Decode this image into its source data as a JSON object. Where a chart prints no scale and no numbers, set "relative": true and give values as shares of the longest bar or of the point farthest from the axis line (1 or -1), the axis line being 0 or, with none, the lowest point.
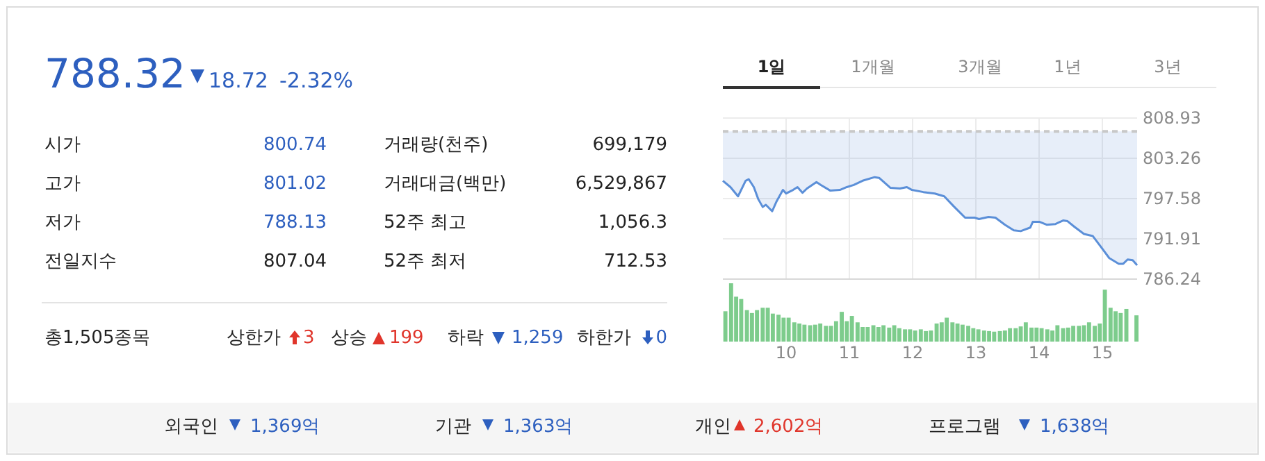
{
  "chart_data": [
    {
      "type": "other",
      "annotations": [
        "788.32",
        "18.72",
        "-2.32%",
        "시가",
        "800.74",
        "거래량(천주)",
        "699,179",
        "고가",
        "801.02",
        "거래대금(백만)",
        "6,529,867",
        "저가",
        "788.13",
        "52주 최고",
        "1,056.3",
        "전일지수",
        "807.04",
        "52주 최저",
        "712.53",
        "총1,505종목",
        "상한가",
        "3",
        "상승",
        "199",
        "하락",
        "1,259",
        "하한가",
        "0",
        "1일",
        "1개월",
        "3개월",
        "1년",
        "3년",
        "외국인",
        "1,369억",
        "기관",
        "1,363억",
        "개인",
        "2,602억",
        "프로그램",
        "1,638억"
      ]
    },
    {
      "type": "area",
      "x": [
        9.0,
        9.12,
        9.24,
        9.36,
        9.41,
        9.49,
        9.56,
        9.63,
        9.68,
        9.78,
        9.85,
        9.95,
        10.0,
        10.11,
        10.18,
        10.26,
        10.33,
        10.48,
        10.55,
        10.7,
        10.85,
        10.96,
        11.07,
        11.21,
        11.4,
        11.47,
        11.65,
        11.8,
        11.91,
        11.99,
        12.17,
        12.35,
        12.5,
        12.65,
        12.83,
        12.98,
        13.05,
        13.2,
        13.31,
        13.46,
        13.6,
        13.71,
        13.86,
        13.9,
        14.01,
        14.12,
        14.26,
        14.38,
        14.45,
        14.56,
        14.71,
        14.85,
        14.96,
        15.11,
        15.26,
        15.33,
        15.4,
        15.48,
        15.55
      ],
      "series": [
        {
          "type": "line",
          "color": "#5b8fd8",
          "values": [
            800.1,
            799.2,
            797.9,
            800.1,
            800.3,
            799.2,
            797.5,
            796.4,
            796.7,
            795.8,
            797.2,
            798.8,
            798.3,
            798.8,
            799.2,
            798.4,
            799.0,
            799.9,
            799.5,
            798.7,
            798.8,
            799.2,
            799.5,
            800.1,
            800.6,
            800.5,
            799.1,
            799.0,
            799.2,
            798.8,
            798.5,
            798.3,
            797.9,
            796.5,
            794.9,
            794.9,
            794.7,
            795.0,
            794.9,
            793.9,
            793.1,
            793.0,
            793.5,
            794.3,
            794.3,
            793.9,
            794.0,
            794.5,
            794.4,
            793.6,
            792.6,
            792.3,
            791.0,
            789.2,
            788.4,
            788.4,
            789.0,
            788.9,
            788.2
          ],
          "lower": [
            800.1,
            799.2,
            797.9,
            800.1,
            800.3,
            799.2,
            797.5,
            796.4,
            796.7,
            795.8,
            797.2,
            798.8,
            798.3,
            798.8,
            799.2,
            798.4,
            799.0,
            799.9,
            799.5,
            798.7,
            798.8,
            799.2,
            799.5,
            800.1,
            800.6,
            800.5,
            799.1,
            799.0,
            799.2,
            798.8,
            798.5,
            798.3,
            797.9,
            796.5,
            794.9,
            794.9,
            794.7,
            795.0,
            794.9,
            793.9,
            793.1,
            793.0,
            793.5,
            794.3,
            794.3,
            793.9,
            794.0,
            794.5,
            794.4,
            793.6,
            792.6,
            792.3,
            791.0,
            789.2,
            788.4,
            788.4,
            789.0,
            788.9,
            788.2
          ],
          "upper": [
            807.04,
            807.04,
            807.04,
            807.04,
            807.04,
            807.04,
            807.04,
            807.04,
            807.04,
            807.04,
            807.04,
            807.04,
            807.04,
            807.04,
            807.04,
            807.04,
            807.04,
            807.04,
            807.04,
            807.04,
            807.04,
            807.04,
            807.04,
            807.04,
            807.04,
            807.04,
            807.04,
            807.04,
            807.04,
            807.04,
            807.04,
            807.04,
            807.04,
            807.04,
            807.04,
            807.04,
            807.04,
            807.04,
            807.04,
            807.04,
            807.04,
            807.04,
            807.04,
            807.04,
            807.04,
            807.04,
            807.04,
            807.04,
            807.04,
            807.04,
            807.04,
            807.04,
            807.04,
            807.04,
            807.04,
            807.04,
            807.04,
            807.04,
            807.04
          ]
        }
      ],
      "xlim": [
        9,
        15.55
      ],
      "xticks": [
        10,
        11,
        12,
        13,
        14,
        15
      ],
      "ylim": [
        786.24,
        808.93
      ],
      "yticks": [
        786.24,
        791.91,
        797.58,
        803.26,
        808.93
      ],
      "tick_labels": "y",
      "grid": true,
      "ref_lines": [
        {
          "axis": "y",
          "value": 807.04,
          "color": "#c8c8c8",
          "line_style": "dashed"
        }
      ]
    },
    {
      "type": "bar",
      "relative": true,
      "color": "#7dcc8c",
      "xlim": [
        9,
        15.55
      ],
      "xticks": [
        10,
        11,
        12,
        13,
        14,
        15
      ],
      "x": [
        9.04,
        9.13,
        9.21,
        9.29,
        9.38,
        9.46,
        9.54,
        9.63,
        9.71,
        9.79,
        9.88,
        9.96,
        10.04,
        10.13,
        10.21,
        10.29,
        10.38,
        10.46,
        10.54,
        10.63,
        10.71,
        10.79,
        10.88,
        10.96,
        11.04,
        11.13,
        11.21,
        11.29,
        11.38,
        11.46,
        11.54,
        11.63,
        11.71,
        11.79,
        11.88,
        11.96,
        12.04,
        12.13,
        12.21,
        12.29,
        12.38,
        12.46,
        12.54,
        12.63,
        12.71,
        12.79,
        12.88,
        12.96,
        13.04,
        13.13,
        13.21,
        13.29,
        13.38,
        13.46,
        13.54,
        13.63,
        13.71,
        13.79,
        13.88,
        13.96,
        14.04,
        14.13,
        14.21,
        14.29,
        14.38,
        14.46,
        14.54,
        14.63,
        14.71,
        14.79,
        14.88,
        14.96,
        15.04,
        15.13,
        15.21,
        15.29,
        15.38,
        15.46,
        15.54
      ],
      "values": [
        0.52,
        1,
        0.77,
        0.73,
        0.54,
        0.49,
        0.54,
        0.58,
        0.58,
        0.48,
        0.46,
        0.41,
        0.41,
        0.33,
        0.31,
        0.29,
        0.28,
        0.29,
        0.31,
        0.27,
        0.27,
        0.35,
        0.51,
        0.35,
        0.44,
        0.33,
        0.25,
        0.25,
        0.28,
        0.25,
        0.28,
        0.24,
        0.28,
        0.23,
        0.21,
        0.21,
        0.19,
        0.21,
        0.18,
        0.19,
        0.31,
        0.33,
        0.41,
        0.33,
        0.31,
        0.29,
        0.27,
        0.23,
        0.21,
        0.19,
        0.18,
        0.17,
        0.18,
        0.19,
        0.23,
        0.23,
        0.26,
        0.33,
        0.24,
        0.24,
        0.23,
        0.21,
        0.19,
        0.28,
        0.23,
        0.24,
        0.27,
        0.27,
        0.28,
        0.33,
        0.27,
        0.31,
        0.89,
        0.58,
        0.52,
        0.49,
        0.56,
        null,
        0.45
      ]
    }
  ]
}
